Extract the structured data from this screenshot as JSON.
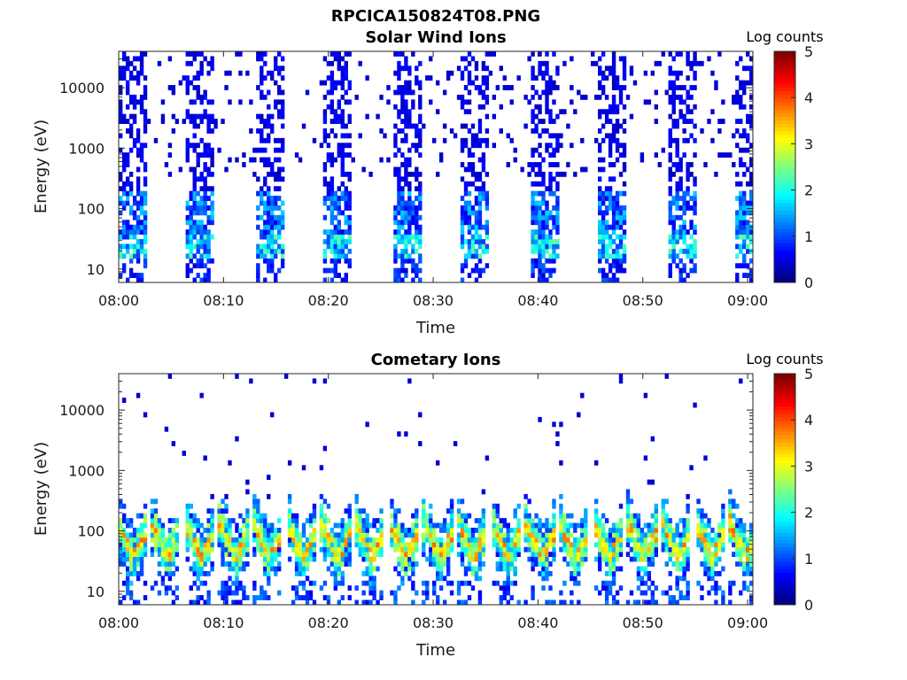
{
  "figure_title": "RPCICA150824T08.PNG",
  "chart_data": [
    {
      "type": "heatmap",
      "title": "Solar Wind Ions",
      "xlabel": "Time",
      "ylabel": "Energy (eV)",
      "x_ticks": [
        "08:00",
        "08:10",
        "08:20",
        "08:30",
        "08:40",
        "08:50",
        "09:00"
      ],
      "y_scale": "log",
      "y_ticks": [
        "10",
        "100",
        "1000",
        "10000"
      ],
      "ylim": [
        6,
        40000
      ],
      "colorbar": {
        "label": "Log counts",
        "ticks": [
          "0",
          "1",
          "2",
          "3",
          "4",
          "5"
        ],
        "range": [
          0,
          5
        ],
        "colormap": "jet"
      },
      "pattern": "Periodic energy sweeps about every 6.5 minutes; sparse low-count (blue) noise up to ~20000 eV, brighter cyan/green-yellow peaks near 20-60 eV (log counts up to ~2.5)."
    },
    {
      "type": "heatmap",
      "title": "Cometary Ions",
      "xlabel": "Time",
      "ylabel": "Energy (eV)",
      "x_ticks": [
        "08:00",
        "08:10",
        "08:20",
        "08:30",
        "08:40",
        "08:50",
        "09:00"
      ],
      "y_scale": "log",
      "y_ticks": [
        "10",
        "100",
        "1000",
        "10000"
      ],
      "ylim": [
        6,
        40000
      ],
      "colorbar": {
        "label": "Log counts",
        "ticks": [
          "0",
          "1",
          "2",
          "3",
          "4",
          "5"
        ],
        "range": [
          0,
          5
        ],
        "colormap": "jet"
      },
      "pattern": "Repeated V-shaped features about every 3 minutes; intense band (log counts 3-4, orange) near 25-50 eV, tails to ~300 eV, sparse points up to ~10000 eV."
    }
  ]
}
